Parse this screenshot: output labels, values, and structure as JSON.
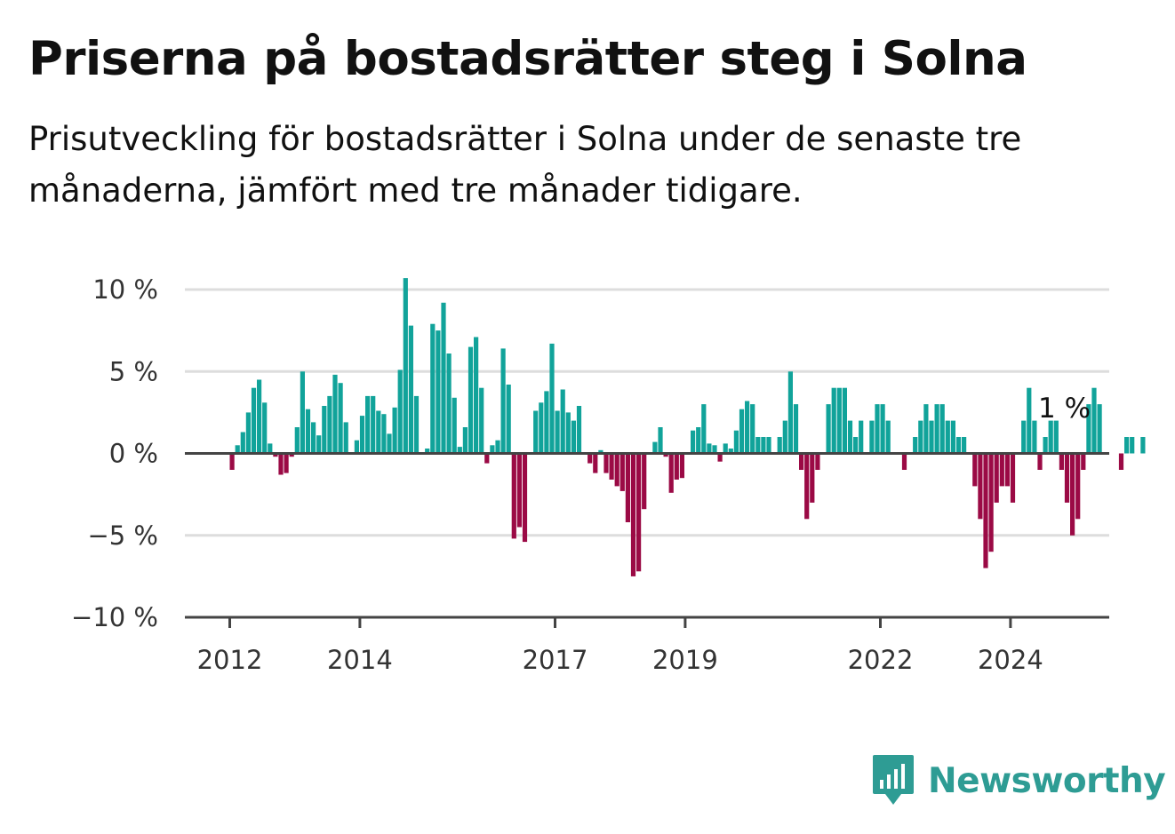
{
  "title": "Priserna på bostadsrätter steg i Solna",
  "subtitle": "Prisutveckling för bostadsrätter i Solna under de senaste tre månaderna, jämfört med tre månader tidigare.",
  "brand": {
    "name": "Newsworthy",
    "color": "#2e9c94",
    "icon": "newsworthy-logo-icon"
  },
  "colors": {
    "positive": "#11a39a",
    "negative": "#9b0a45",
    "grid": "#dddddd",
    "axis": "#444444"
  },
  "chart_data": {
    "type": "bar",
    "grid": true,
    "ylim": [
      -10,
      10
    ],
    "y_ticks": [
      {
        "value": 10,
        "label": "10 %"
      },
      {
        "value": 5,
        "label": "5 %"
      },
      {
        "value": 0,
        "label": "0 %"
      },
      {
        "value": -5,
        "label": "−5 %"
      },
      {
        "value": -10,
        "label": "−10 %"
      }
    ],
    "x_ticks": [
      {
        "year": 2012,
        "label": "2012"
      },
      {
        "year": 2014,
        "label": "2014"
      },
      {
        "year": 2017,
        "label": "2017"
      },
      {
        "year": 2019,
        "label": "2019"
      },
      {
        "year": 2022,
        "label": "2022"
      },
      {
        "year": 2024,
        "label": "2024"
      }
    ],
    "start": "2012-01",
    "values": [
      -1,
      0.5,
      1.3,
      2.5,
      4,
      4.5,
      3.1,
      0.6,
      -0.2,
      -1.3,
      -1.2,
      -0.2,
      1.6,
      5,
      2.7,
      1.9,
      1.1,
      2.9,
      3.5,
      4.8,
      4.3,
      1.9,
      0,
      0.8,
      2.3,
      3.5,
      3.5,
      2.6,
      2.4,
      1.2,
      2.8,
      5.1,
      10.7,
      7.8,
      3.5,
      0,
      0.3,
      7.9,
      7.5,
      9.2,
      6.1,
      3.4,
      0.4,
      1.6,
      6.5,
      7.1,
      4,
      -0.6,
      0.5,
      0.8,
      6.4,
      4.2,
      -5.2,
      -4.5,
      -5.4,
      0,
      2.6,
      3.1,
      3.8,
      6.7,
      2.6,
      3.9,
      2.5,
      2,
      2.9,
      0,
      -0.6,
      -1.2,
      0.2,
      -1.2,
      -1.6,
      -2,
      -2.3,
      -4.2,
      -7.5,
      -7.2,
      -3.4,
      0,
      0.7,
      1.6,
      -0.2,
      -2.4,
      -1.6,
      -1.5,
      0,
      1.4,
      1.6,
      3,
      0.6,
      0.5,
      -0.5,
      0.6,
      0.3,
      1.4,
      2.7,
      3.2,
      3,
      1,
      1,
      1,
      0,
      1,
      2,
      5,
      3,
      -1,
      -4,
      -3,
      -1,
      0,
      3,
      4,
      4,
      4,
      2,
      1,
      2,
      0,
      2,
      3,
      3,
      2,
      0,
      0,
      -1,
      0,
      1,
      2,
      3,
      2,
      3,
      3,
      2,
      2,
      1,
      1,
      0,
      -2,
      -4,
      -7,
      -6,
      -3,
      -2,
      -2,
      -3,
      0,
      2,
      4,
      2,
      -1,
      1,
      2,
      2,
      -1,
      -3,
      -5,
      -4,
      -1,
      3,
      4,
      3,
      0,
      0,
      0,
      -1,
      1,
      1,
      0,
      1
    ],
    "last_value_label": "1 %"
  }
}
